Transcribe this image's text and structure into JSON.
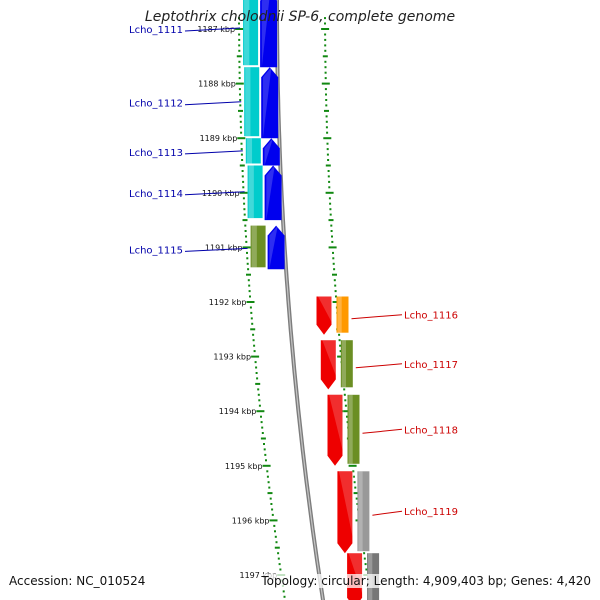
{
  "title": "Leptothrix cholodnii SP-6, complete genome",
  "footer": {
    "accession_label": "Accession:",
    "accession": "NC_010524",
    "topology_label": "Topology:",
    "topology": "circular",
    "length_label": "Length:",
    "length": "4,909,403 bp",
    "genes_label": "Genes:",
    "genes": "4,420"
  },
  "colors": {
    "forward_cds": "#0000ee",
    "reverse_cds": "#ee0000",
    "forward_label": "#0000aa",
    "reverse_label": "#cc0000",
    "ticks": "#118811",
    "backbone": "#888888"
  },
  "ticks": [
    {
      "label": "1187 kbp",
      "kbp": 1187
    },
    {
      "label": "1188 kbp",
      "kbp": 1188
    },
    {
      "label": "1189 kbp",
      "kbp": 1189
    },
    {
      "label": "1190 kbp",
      "kbp": 1190
    },
    {
      "label": "1191 kbp",
      "kbp": 1191
    },
    {
      "label": "1192 kbp",
      "kbp": 1192
    },
    {
      "label": "1193 kbp",
      "kbp": 1193
    },
    {
      "label": "1194 kbp",
      "kbp": 1194
    },
    {
      "label": "1195 kbp",
      "kbp": 1195
    },
    {
      "label": "1196 kbp",
      "kbp": 1196
    },
    {
      "label": "1197 kbp",
      "kbp": 1197
    }
  ],
  "forward_genes": [
    {
      "name": "Lcho_1111",
      "start_kbp": 1186.3,
      "end_kbp": 1187.7,
      "cog_color": "#00cccc"
    },
    {
      "name": "Lcho_1112",
      "start_kbp": 1187.7,
      "end_kbp": 1189.0,
      "cog_color": "#00cccc"
    },
    {
      "name": "Lcho_1113",
      "start_kbp": 1189.0,
      "end_kbp": 1189.5,
      "cog_color": "#00cccc"
    },
    {
      "name": "Lcho_1114",
      "start_kbp": 1189.5,
      "end_kbp": 1190.5,
      "cog_color": "#00cccc"
    },
    {
      "name": "Lcho_1115",
      "start_kbp": 1190.6,
      "end_kbp": 1191.4,
      "cog_color": "#6b8e23"
    }
  ],
  "reverse_genes": [
    {
      "name": "Lcho_1116",
      "start_kbp": 1191.9,
      "end_kbp": 1192.6,
      "cog_color": "#ff9900"
    },
    {
      "name": "Lcho_1117",
      "start_kbp": 1192.7,
      "end_kbp": 1193.6,
      "cog_color": "#6b8e23"
    },
    {
      "name": "Lcho_1118",
      "start_kbp": 1193.7,
      "end_kbp": 1195.0,
      "cog_color": "#6b8e23"
    },
    {
      "name": "Lcho_1119",
      "start_kbp": 1195.1,
      "end_kbp": 1196.6,
      "cog_color": "#999999"
    },
    {
      "name": "",
      "start_kbp": 1196.6,
      "end_kbp": 1197.6,
      "cog_color": "#777777"
    }
  ]
}
